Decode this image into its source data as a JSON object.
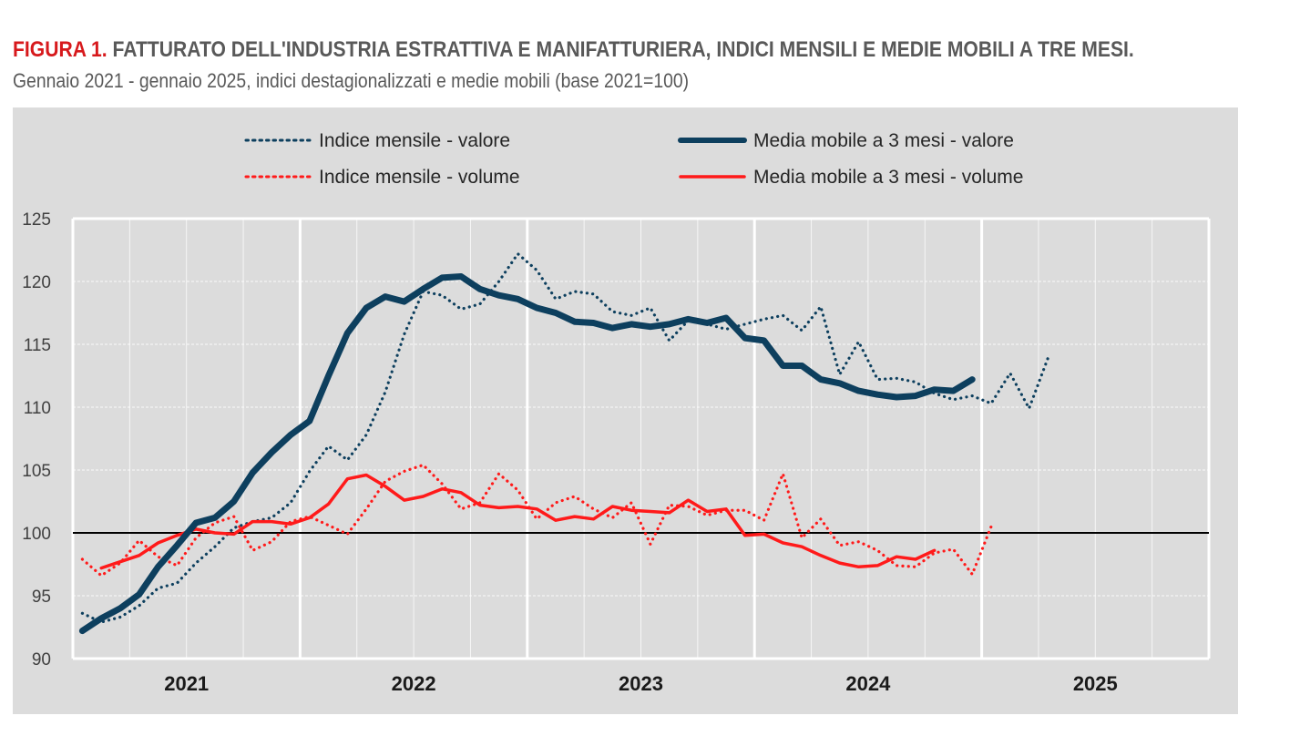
{
  "header": {
    "figure_label": "FIGURA 1.",
    "title_main": "FATTURATO DELL'INDUSTRIA ESTRATTIVA E MANIFATTURIERA, INDICI MENSILI E MEDIE MOBILI A TRE MESI.",
    "subtitle": "Gennaio 2021 - gennaio 2025, indici destagionalizzati e medie mobili (base 2021=100)"
  },
  "colors": {
    "valore": "#0d3f5e",
    "volume": "#ff1a1a",
    "title_red": "#d7191c",
    "panel_bg": "#dcdcdc",
    "grid": "#ffffff",
    "baseline": "#000000"
  },
  "chart_data": {
    "type": "line",
    "title": "FATTURATO DELL'INDUSTRIA ESTRATTIVA E MANIFATTURIERA, INDICI MENSILI E MEDIE MOBILI A TRE MESI",
    "xlabel": "",
    "ylabel": "",
    "x_start": "2021-01",
    "x_frequency": "monthly",
    "xlim_years": [
      2021,
      2025
    ],
    "x_tick_labels": [
      "2021",
      "2022",
      "2023",
      "2024",
      "2025"
    ],
    "ylim": [
      90,
      125
    ],
    "y_ticks": [
      90,
      95,
      100,
      105,
      110,
      115,
      120,
      125
    ],
    "y_tick_labels": [
      "90",
      "95",
      "100",
      "105",
      "110",
      "115",
      "120",
      "125"
    ],
    "reference_line": 100,
    "grid": true,
    "legend_position": "top",
    "legend": [
      "Indice mensile - valore",
      "Media mobile a 3 mesi - valore",
      "Indice mensile - volume",
      "Media mobile a 3 mesi - volume"
    ],
    "series": [
      {
        "name": "Indice mensile - valore",
        "style": "dotted",
        "color_key": "valore",
        "start_month_index": 0,
        "values": [
          93.6,
          92.9,
          93.3,
          94.2,
          95.6,
          96.0,
          97.6,
          98.9,
          100.4,
          100.9,
          101.2,
          102.4,
          104.9,
          106.9,
          105.8,
          107.8,
          111.2,
          115.8,
          119.2,
          118.9,
          117.8,
          118.2,
          120.0,
          122.2,
          120.9,
          118.6,
          119.2,
          119.0,
          117.6,
          117.3,
          117.9,
          115.3,
          116.9,
          116.6,
          116.2,
          116.6,
          117.0,
          117.3,
          116.1,
          118.0,
          112.6,
          115.2,
          112.2,
          112.3,
          112.0,
          111.1,
          110.6,
          110.9,
          110.3,
          112.7,
          109.9,
          113.9
        ]
      },
      {
        "name": "Media mobile a 3 mesi - valore",
        "style": "solid-thick",
        "color_key": "valore",
        "start_month_index": 0,
        "values": [
          92.2,
          93.2,
          94.0,
          95.1,
          97.3,
          99.0,
          100.8,
          101.2,
          102.5,
          104.8,
          106.4,
          107.8,
          108.9,
          112.5,
          115.9,
          117.9,
          118.8,
          118.4,
          119.4,
          120.3,
          120.4,
          119.4,
          118.9,
          118.6,
          117.9,
          117.5,
          116.8,
          116.7,
          116.3,
          116.6,
          116.4,
          116.6,
          117.0,
          116.7,
          117.1,
          115.5,
          115.3,
          113.3,
          113.3,
          112.2,
          111.9,
          111.3,
          111.0,
          110.8,
          110.9,
          111.4,
          111.3,
          112.2
        ]
      },
      {
        "name": "Indice mensile - volume",
        "style": "dotted",
        "color_key": "volume",
        "start_month_index": 0,
        "values": [
          97.9,
          96.6,
          97.6,
          99.4,
          98.1,
          97.4,
          99.6,
          100.8,
          101.3,
          98.6,
          99.3,
          100.9,
          101.3,
          100.6,
          99.9,
          101.9,
          104.1,
          104.9,
          105.4,
          103.9,
          101.9,
          102.4,
          104.7,
          103.4,
          101.1,
          102.4,
          102.9,
          101.9,
          101.2,
          102.4,
          99.1,
          102.2,
          102.1,
          101.4,
          101.8,
          101.8,
          101.0,
          104.7,
          99.6,
          101.1,
          99.0,
          99.3,
          98.6,
          97.4,
          97.3,
          98.4,
          98.7,
          96.7,
          100.5
        ]
      },
      {
        "name": "Media mobile a 3 mesi - volume",
        "style": "solid",
        "color_key": "volume",
        "start_month_index": 1,
        "values": [
          97.2,
          97.7,
          98.2,
          99.2,
          99.8,
          100.3,
          100.0,
          99.9,
          100.9,
          100.9,
          100.7,
          101.2,
          102.3,
          104.3,
          104.6,
          103.7,
          102.6,
          102.9,
          103.5,
          103.2,
          102.2,
          102.0,
          102.1,
          101.9,
          101.0,
          101.3,
          101.1,
          102.1,
          101.8,
          101.7,
          101.6,
          102.6,
          101.7,
          101.9,
          99.8,
          99.9,
          99.2,
          98.9,
          98.2,
          97.6,
          97.3,
          97.4,
          98.1,
          97.9,
          98.6
        ]
      }
    ]
  }
}
